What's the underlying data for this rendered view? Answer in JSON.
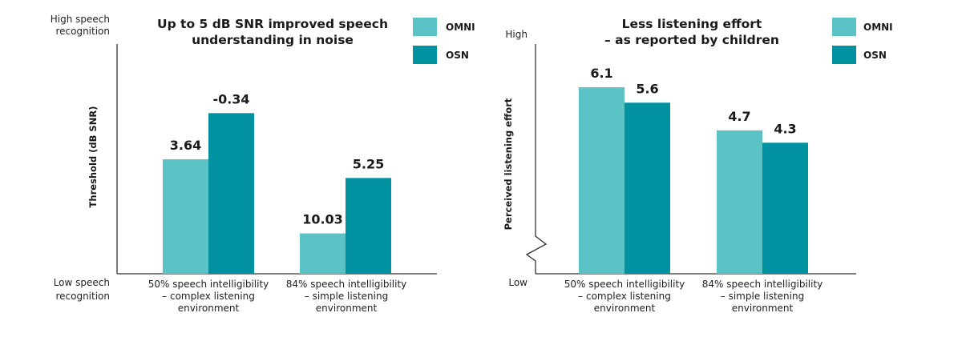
{
  "colors": {
    "omni": "#5bc2c6",
    "osn": "#0092a1",
    "axis": "#333333"
  },
  "chart_data": [
    {
      "type": "bar",
      "title": [
        "Up to 5 dB SNR improved speech",
        "understanding in noise"
      ],
      "ylabel": "Threshold (dB SNR)",
      "y_top_label": [
        "High speech",
        "recognition"
      ],
      "y_bottom_label": [
        "Low speech",
        "recognition"
      ],
      "categories": [
        [
          "50% speech intelligibility",
          "– complex listening",
          "environment"
        ],
        [
          "84% speech intelligibility",
          "– simple listening",
          "environment"
        ]
      ],
      "series": [
        {
          "name": "OMNI",
          "values": [
            3.64,
            10.03
          ],
          "labels": [
            "3.64",
            "10.03"
          ]
        },
        {
          "name": "OSN",
          "values": [
            -0.34,
            5.25
          ],
          "labels": [
            "-0.34",
            "5.25"
          ]
        }
      ],
      "axis_direction": "reversed (lower threshold = better)",
      "legend": "top-right",
      "grid": false
    },
    {
      "type": "bar",
      "title": [
        "Less listening effort",
        "– as reported by children"
      ],
      "ylabel": "Perceived listening effort",
      "y_top_label": [
        "High"
      ],
      "y_bottom_label": [
        "Low"
      ],
      "categories": [
        [
          "50% speech intelligibility",
          "– complex listening",
          "environment"
        ],
        [
          "84% speech intelligibility",
          "– simple listening",
          "environment"
        ]
      ],
      "series": [
        {
          "name": "OMNI",
          "values": [
            6.1,
            4.7
          ],
          "labels": [
            "6.1",
            "4.7"
          ]
        },
        {
          "name": "OSN",
          "values": [
            5.6,
            4.3
          ],
          "labels": [
            "5.6",
            "4.3"
          ]
        }
      ],
      "axis_break": true,
      "legend": "top-right",
      "grid": false
    }
  ]
}
